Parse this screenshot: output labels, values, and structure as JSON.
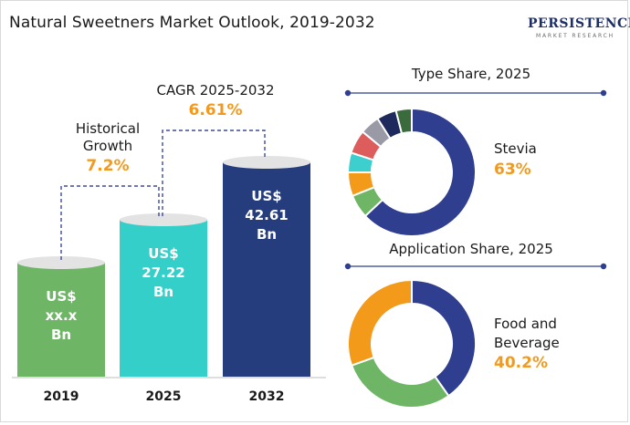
{
  "title": "Natural Sweetners Market Outlook, 2019-2032",
  "logo": {
    "line1": "PERSISTENCE",
    "line2": "MARKET RESEARCH"
  },
  "colors": {
    "bar_2019": "#6fb566",
    "bar_2025": "#33cfc8",
    "bar_2032": "#253d7c",
    "cagr_value": "#f29a1f",
    "connector": "#3b4a9a"
  },
  "annotations": {
    "historical": {
      "label_line1": "Historical",
      "label_line2": "Growth",
      "value": "7.2%"
    },
    "cagr": {
      "label": "CAGR 2025-2032",
      "value": "6.61%"
    }
  },
  "chart_data": [
    {
      "type": "bar",
      "title": "",
      "categories": [
        "2019",
        "2025",
        "2032"
      ],
      "values": [
        null,
        27.22,
        42.61
      ],
      "value_labels": [
        [
          "US$",
          "xx.x",
          "Bn"
        ],
        [
          "US$",
          "27.22",
          "Bn"
        ],
        [
          "US$",
          "42.61",
          "Bn"
        ]
      ]
    },
    {
      "type": "pie",
      "title": "Type Share, 2025",
      "highlight_label": "Stevia",
      "highlight_value": "63%",
      "slices": [
        {
          "value": 63,
          "color": "#2f3e8f"
        },
        {
          "value": 6,
          "color": "#6fb566"
        },
        {
          "value": 6,
          "color": "#f39a1a"
        },
        {
          "value": 5,
          "color": "#3ccfce"
        },
        {
          "value": 6,
          "color": "#dd5c5c"
        },
        {
          "value": 5,
          "color": "#9a9aa6"
        },
        {
          "value": 5,
          "color": "#1f2a5c"
        },
        {
          "value": 4,
          "color": "#3b6b3c"
        }
      ]
    },
    {
      "type": "pie",
      "title": "Application Share, 2025",
      "highlight_label_line1": "Food and",
      "highlight_label_line2": "Beverage",
      "highlight_value": "40.2%",
      "slices": [
        {
          "value": 40.2,
          "color": "#2f3e8f"
        },
        {
          "value": 29.3,
          "color": "#6fb566"
        },
        {
          "value": 30.5,
          "color": "#f39a1a"
        }
      ]
    }
  ]
}
